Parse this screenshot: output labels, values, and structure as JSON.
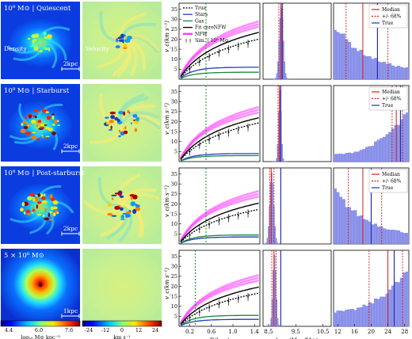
{
  "rows": [
    {
      "title": "10⁹ M⊙ | Quiescent",
      "scale": "2kpc",
      "kind": "disc"
    },
    {
      "title": "10⁹ M⊙ | Starburst",
      "scale": "2kpc",
      "kind": "burst"
    },
    {
      "title": "10⁹ M⊙ | Post-starburst",
      "scale": "2kpc",
      "kind": "post"
    },
    {
      "title": "5 × 10⁸ M⊙",
      "scale": "1kpc",
      "kind": "smooth"
    }
  ],
  "map_labels": {
    "density": "Density",
    "velocity": "Velocity"
  },
  "colorbars": {
    "density": {
      "ticks": [
        "4.4",
        "6.0",
        "7.6"
      ],
      "unit": "log₁₀ M⊙ kpc⁻³"
    },
    "velocity": {
      "ticks": [
        "-24",
        "-12",
        "0",
        "12",
        "24"
      ],
      "unit": "km s⁻¹"
    }
  },
  "chart_data": [
    {
      "type": "line",
      "panel": "rotation-curves",
      "xlabel": "R(kpc)",
      "ylabel": "v_c(km s⁻¹)",
      "xlim": [
        0,
        1.5
      ],
      "ylim": [
        0,
        38
      ],
      "xticks": [
        "0.2",
        "0.6",
        "1.0",
        "1.4"
      ],
      "yticks": [
        "5",
        "10",
        "15",
        "20",
        "25",
        "30",
        "35"
      ],
      "legend": [
        "True",
        "Stars",
        "Gas",
        "Fit coreNFW",
        "NFW",
        "Sim. | 10⁹ M⊙"
      ],
      "rows": [
        {
          "r_half": 0.5,
          "true_amp": 14.5,
          "nfw_amp": 16.5,
          "fit_amp": 15.5,
          "stars": 6.0,
          "gas": 3.5
        },
        {
          "r_half": 0.5,
          "true_amp": 14.0,
          "nfw_amp": 15.5,
          "fit_amp": 14.5,
          "stars": 4.0,
          "gas": 3.0
        },
        {
          "r_half": 0.5,
          "true_amp": 12.5,
          "nfw_amp": 15.0,
          "fit_amp": 13.5,
          "stars": 3.5,
          "gas": 4.5
        },
        {
          "r_half": 0.3,
          "true_amp": 12.0,
          "nfw_amp": 14.5,
          "fit_amp": 13.0,
          "stars": 3.5,
          "gas": 5.5
        }
      ]
    },
    {
      "type": "bar",
      "panel": "m200-posterior",
      "xlabel": "log₁₀(M₂₀₀/M⊙)",
      "xlim": [
        8.3,
        10.8
      ],
      "xticks": [
        "8.5",
        "9.5",
        "10.5"
      ],
      "rows": [
        {
          "peak": 8.95,
          "width": 0.15,
          "true": 9.0,
          "median": 8.95,
          "lo": 8.88,
          "hi": 9.02
        },
        {
          "peak": 8.9,
          "width": 0.1,
          "true": 8.95,
          "median": 8.9,
          "lo": 8.85,
          "hi": 8.95
        },
        {
          "peak": 8.6,
          "width": 0.15,
          "true": 8.95,
          "median": 8.6,
          "lo": 8.55,
          "hi": 8.7
        },
        {
          "peak": 8.7,
          "width": 0.12,
          "true": 8.95,
          "median": 8.7,
          "lo": 8.62,
          "hi": 8.78
        }
      ]
    },
    {
      "type": "bar",
      "panel": "concentration-posterior",
      "xlabel": "c",
      "xlim": [
        11,
        29
      ],
      "xticks": [
        "12",
        "16",
        "20",
        "24",
        "28"
      ],
      "legend": [
        "Median",
        "+/- 68%",
        "True"
      ],
      "rows": [
        {
          "median": 18.0,
          "lo": 14.0,
          "hi": 24.0,
          "true": 21.5,
          "trend": "falling"
        },
        {
          "median": 26.0,
          "lo": 25.0,
          "hi": 27.5,
          "true": 27.0,
          "trend": "rising"
        },
        {
          "median": 18.0,
          "lo": 14.5,
          "hi": 22.5,
          "true": 20.0,
          "trend": "falling"
        },
        {
          "median": 24.0,
          "lo": 19.5,
          "hi": 27.5,
          "true": 25.5,
          "trend": "rising"
        }
      ]
    }
  ]
}
